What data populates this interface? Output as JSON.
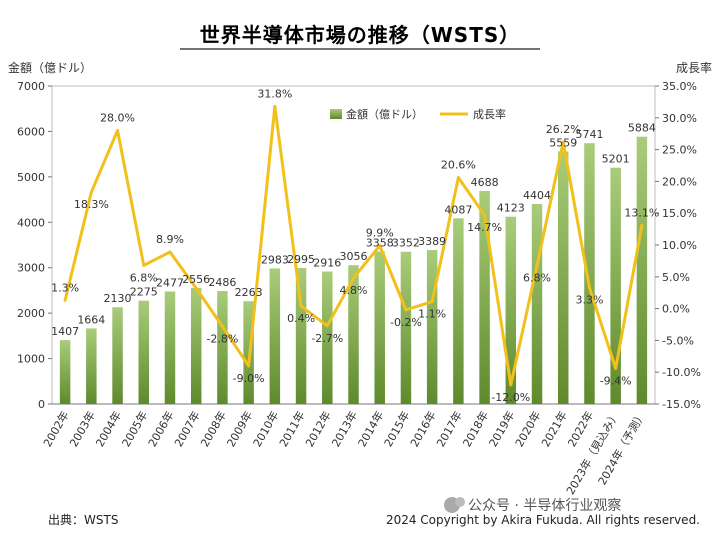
{
  "chart_data": {
    "type": "bar",
    "title": "世界半導体市場の推移（WSTS）",
    "y_left_label": "金額（億ドル）",
    "y_right_label": "成長率",
    "y_left_ticks": [
      0,
      1000,
      2000,
      3000,
      4000,
      5000,
      6000,
      7000
    ],
    "y_right_ticks": [
      "-15.0%",
      "-10.0%",
      "-5.0%",
      "0.0%",
      "5.0%",
      "10.0%",
      "15.0%",
      "20.0%",
      "25.0%",
      "30.0%",
      "35.0%"
    ],
    "ylim_left": [
      0,
      7000
    ],
    "ylim_right": [
      -15,
      35
    ],
    "categories": [
      "2002年",
      "2003年",
      "2004年",
      "2005年",
      "2006年",
      "2007年",
      "2008年",
      "2009年",
      "2010年",
      "2011年",
      "2012年",
      "2013年",
      "2014年",
      "2015年",
      "2016年",
      "2017年",
      "2018年",
      "2019年",
      "2020年",
      "2021年",
      "2022年",
      "2023年（見込み）",
      "2024年（予測）"
    ],
    "series": [
      {
        "name": "金額（億ドル）",
        "type": "bar",
        "axis": "left",
        "values": [
          1407,
          1664,
          2130,
          2275,
          2477,
          2556,
          2486,
          2263,
          2983,
          2995,
          2916,
          3056,
          3358,
          3352,
          3389,
          4087,
          4688,
          4123,
          4404,
          5559,
          5741,
          5201,
          5884
        ],
        "labels": [
          "1407",
          "1664",
          "2130",
          "2275",
          "2477",
          "2556",
          "2486",
          "2263",
          "2983",
          "2995",
          "2916",
          "3056",
          "3358",
          "3352",
          "3389",
          "4087",
          "4688",
          "4123",
          "4404",
          "5559",
          "5741",
          "5201",
          "5884"
        ]
      },
      {
        "name": "成長率",
        "type": "line",
        "axis": "right",
        "values": [
          1.3,
          18.3,
          28.0,
          6.8,
          8.9,
          3.2,
          -2.8,
          -9.0,
          31.8,
          0.4,
          -2.7,
          4.8,
          9.9,
          -0.2,
          1.1,
          20.6,
          14.7,
          -12.0,
          6.8,
          26.2,
          3.3,
          -9.4,
          13.1
        ],
        "labels": [
          "1.3%",
          "18.3%",
          "28.0%",
          "6.8%",
          "8.9%",
          "",
          "-2.8%",
          "-9.0%",
          "31.8%",
          "0.4%",
          "-2.7%",
          "4.8%",
          "9.9%",
          "-0.2%",
          "1.1%",
          "20.6%",
          "14.7%",
          "-12.0%",
          "6.8%",
          "26.2%",
          "3.3%",
          "-9.4%",
          "13.1%"
        ]
      }
    ],
    "legend_position": "top-center",
    "grid": false,
    "colors": {
      "bar_top": "#9cc26a",
      "bar_bottom": "#5e8a2c",
      "line": "#f2c01b"
    }
  },
  "footer": {
    "source": "出典：WSTS",
    "copyright": "2024 Copyright by Akira Fukuda. All rights reserved.",
    "watermark": "公众号 · 半导体行业观察"
  }
}
